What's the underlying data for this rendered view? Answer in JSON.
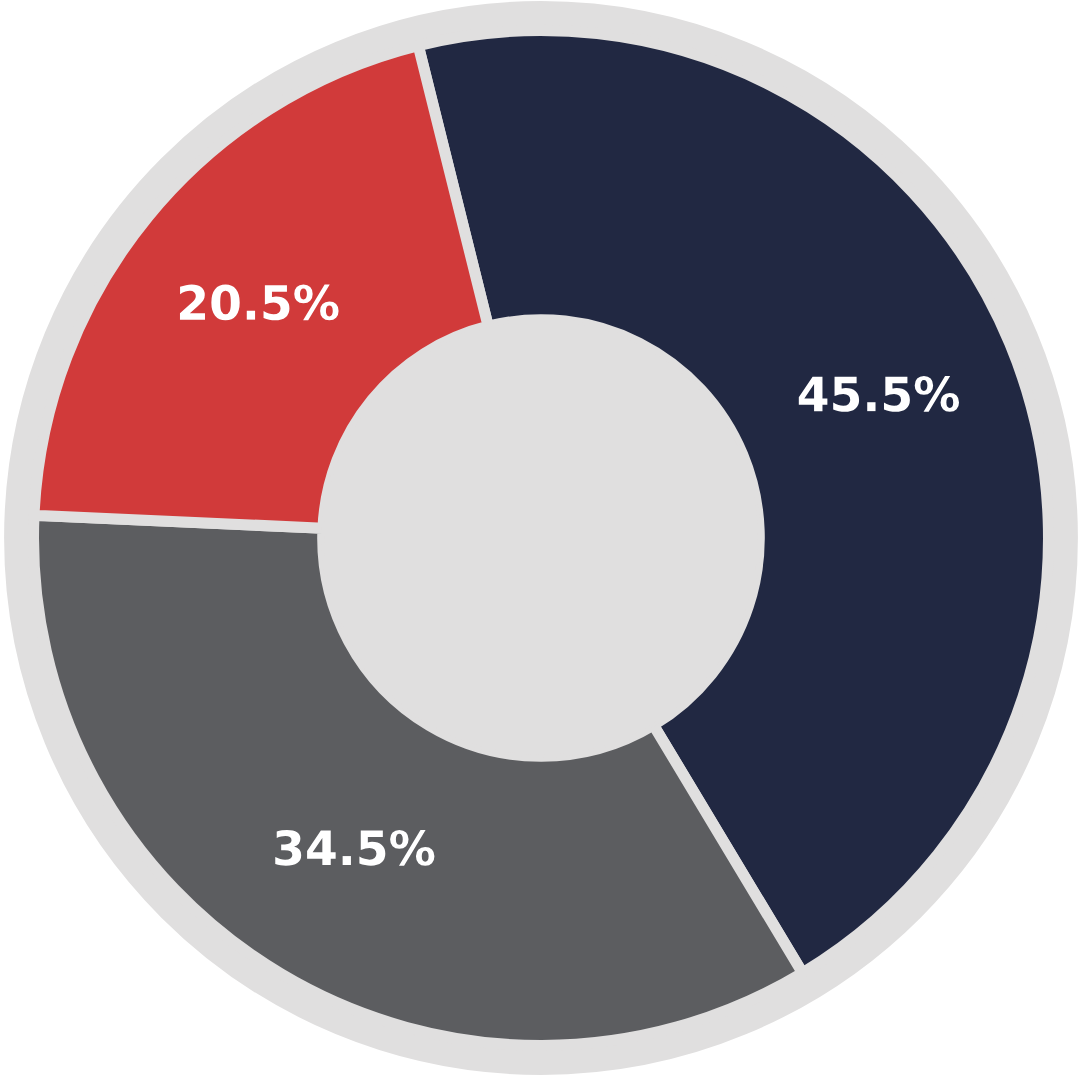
{
  "chart_data": {
    "type": "donut",
    "categories": [
      null,
      null,
      null
    ],
    "values": [
      45.5,
      34.5,
      20.5
    ],
    "colors": [
      "#212842",
      "#5c5d60",
      "#d13a3a"
    ],
    "value_labels": [
      "45.5%",
      "34.5%",
      "20.5%"
    ]
  }
}
